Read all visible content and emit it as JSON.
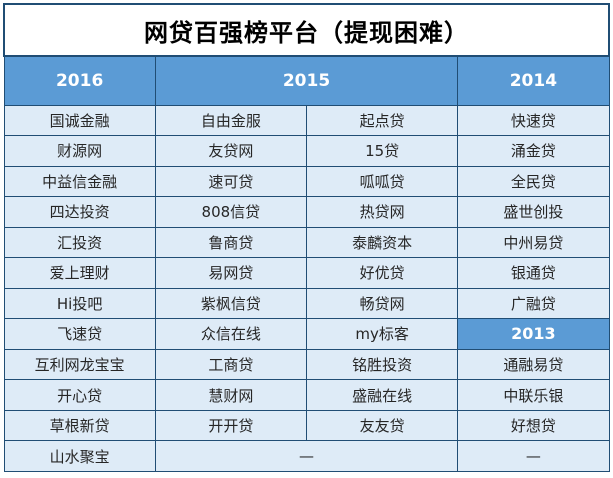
{
  "title": "网贷百强榜平台（提现困难）",
  "colors": {
    "header_bg": "#5B9BD5",
    "cell_bg": "#DEEBF7",
    "border": "#204D74",
    "header_text": "#FFFFFF",
    "cell_text": "#262626",
    "title_text": "#000000"
  },
  "chart_data": {
    "type": "table",
    "title": "网贷百强榜平台（提现困难）",
    "header_row": [
      {
        "text": "2016",
        "colspan": 1
      },
      {
        "text": "2015",
        "colspan": 2
      },
      {
        "text": "2014",
        "colspan": 1
      }
    ],
    "rows": [
      {
        "cells": [
          {
            "text": "国诚金融"
          },
          {
            "text": "自由金服"
          },
          {
            "text": "起点贷"
          },
          {
            "text": "快速贷"
          }
        ]
      },
      {
        "cells": [
          {
            "text": "财源网"
          },
          {
            "text": "友贷网"
          },
          {
            "text": "15贷"
          },
          {
            "text": "涌金贷"
          }
        ]
      },
      {
        "cells": [
          {
            "text": "中益信金融"
          },
          {
            "text": "速可贷"
          },
          {
            "text": "呱呱贷"
          },
          {
            "text": "全民贷"
          }
        ]
      },
      {
        "cells": [
          {
            "text": "四达投资"
          },
          {
            "text": "808信贷"
          },
          {
            "text": "热贷网"
          },
          {
            "text": "盛世创投"
          }
        ]
      },
      {
        "cells": [
          {
            "text": "汇投资"
          },
          {
            "text": "鲁商贷"
          },
          {
            "text": "泰麟资本"
          },
          {
            "text": "中州易贷"
          }
        ]
      },
      {
        "cells": [
          {
            "text": "爱上理财"
          },
          {
            "text": "易网贷"
          },
          {
            "text": "好优贷"
          },
          {
            "text": "银通贷"
          }
        ]
      },
      {
        "cells": [
          {
            "text": "Hi投吧"
          },
          {
            "text": "紫枫信贷"
          },
          {
            "text": "畅贷网"
          },
          {
            "text": "广融贷"
          }
        ]
      },
      {
        "cells": [
          {
            "text": "飞速贷"
          },
          {
            "text": "众信在线"
          },
          {
            "text": "my标客"
          },
          {
            "text": "2013",
            "header_style": true
          }
        ]
      },
      {
        "cells": [
          {
            "text": "互利网龙宝宝"
          },
          {
            "text": "工商贷"
          },
          {
            "text": "铭胜投资"
          },
          {
            "text": "通融易贷"
          }
        ]
      },
      {
        "cells": [
          {
            "text": "开心贷"
          },
          {
            "text": "慧财网"
          },
          {
            "text": "盛融在线"
          },
          {
            "text": "中联乐银"
          }
        ]
      },
      {
        "cells": [
          {
            "text": "草根新贷"
          },
          {
            "text": "开开贷"
          },
          {
            "text": "友友贷"
          },
          {
            "text": "好想贷"
          }
        ]
      },
      {
        "cells": [
          {
            "text": "山水聚宝"
          },
          {
            "text": "—",
            "colspan": 2
          },
          {
            "text": "—"
          }
        ]
      }
    ]
  }
}
